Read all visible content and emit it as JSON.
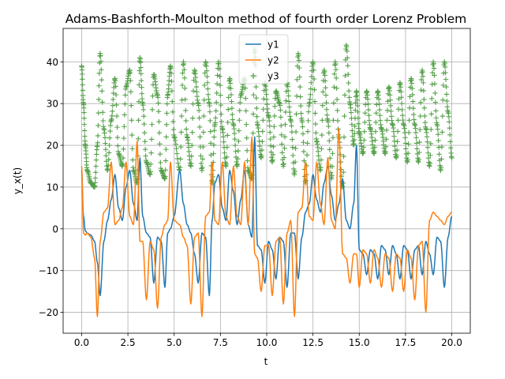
{
  "chart_data": {
    "type": "line",
    "title": "Adams-Bashforth-Moulton method of fourth order Lorenz Problem",
    "xlabel": "t",
    "ylabel": "y_x(t)",
    "xlim": [
      -1.0,
      21.0
    ],
    "ylim": [
      -25,
      48
    ],
    "x_ticks": [
      0.0,
      2.5,
      5.0,
      7.5,
      10.0,
      12.5,
      15.0,
      17.5,
      20.0
    ],
    "x_tick_labels": [
      "0.0",
      "2.5",
      "5.0",
      "7.5",
      "10.0",
      "12.5",
      "15.0",
      "17.5",
      "20.0"
    ],
    "y_ticks": [
      -20,
      -10,
      0,
      10,
      20,
      30,
      40
    ],
    "y_tick_labels": [
      "−20",
      "−10",
      "0",
      "10",
      "20",
      "30",
      "40"
    ],
    "grid": true,
    "legend_position": "top-center",
    "t_range": [
      0,
      20
    ],
    "series": [
      {
        "name": "y1",
        "color": "#1f77b4",
        "marker": "line",
        "x": [
          0.0,
          0.1,
          0.2,
          0.3,
          0.5,
          0.7,
          0.85,
          1.0,
          1.2,
          1.4,
          1.6,
          1.8,
          2.0,
          2.2,
          2.4,
          2.6,
          2.8,
          3.0,
          3.15,
          3.3,
          3.5,
          3.7,
          3.9,
          4.1,
          4.3,
          4.5,
          4.65,
          4.8,
          5.0,
          5.3,
          5.5,
          5.7,
          5.9,
          6.1,
          6.3,
          6.5,
          6.7,
          6.9,
          7.05,
          7.2,
          7.4,
          7.6,
          7.8,
          8.0,
          8.2,
          8.4,
          8.6,
          8.8,
          9.0,
          9.2,
          9.35,
          9.5,
          9.7,
          9.9,
          10.1,
          10.3,
          10.5,
          10.7,
          10.9,
          11.1,
          11.3,
          11.5,
          11.7,
          11.9,
          12.1,
          12.3,
          12.5,
          12.7,
          12.9,
          13.1,
          13.3,
          13.5,
          13.7,
          13.9,
          14.1,
          14.3,
          14.5,
          14.7,
          14.85,
          15.0,
          15.2,
          15.4,
          15.6,
          15.8,
          16.0,
          16.2,
          16.4,
          16.6,
          16.8,
          17.0,
          17.2,
          17.4,
          17.6,
          17.8,
          18.0,
          18.2,
          18.4,
          18.6,
          18.8,
          19.0,
          19.2,
          19.4,
          19.6,
          19.8,
          20.0
        ],
        "y": [
          14,
          3,
          -0.5,
          -1,
          -1.5,
          -3,
          -8,
          -16,
          -3,
          2,
          7,
          13,
          5,
          2,
          10,
          14,
          6,
          2,
          17,
          3,
          -1,
          -2,
          -13,
          -2,
          -3,
          -14,
          -1,
          0,
          3,
          14,
          6,
          1,
          -1,
          -6,
          -13,
          -1,
          -2,
          -16,
          2,
          11,
          13,
          5,
          2,
          14,
          9,
          1,
          7,
          14,
          1,
          -2,
          22,
          -4,
          -5,
          -13,
          -3,
          -5,
          -12,
          -2,
          -3,
          -14,
          -1,
          -1,
          -12,
          -2,
          4,
          6,
          13,
          7,
          4,
          11,
          15,
          8,
          2,
          6,
          12,
          2,
          0,
          6,
          20,
          -5,
          -6,
          -11,
          -5,
          -6,
          -12,
          -4,
          -5,
          -11,
          -4,
          -6,
          -12,
          -4,
          -5,
          -12,
          -5,
          -4,
          -11,
          -3,
          -6,
          -11,
          -2,
          -3,
          -14,
          -2,
          3
        ],
        "label_note": ""
      },
      {
        "name": "y2",
        "color": "#ff7f0e",
        "marker": "line",
        "x": [
          0.0,
          0.1,
          0.2,
          0.3,
          0.5,
          0.7,
          0.85,
          1.0,
          1.2,
          1.4,
          1.6,
          1.8,
          2.0,
          2.2,
          2.4,
          2.6,
          2.8,
          3.0,
          3.15,
          3.3,
          3.5,
          3.7,
          3.9,
          4.1,
          4.3,
          4.5,
          4.65,
          4.8,
          5.0,
          5.3,
          5.5,
          5.7,
          5.9,
          6.1,
          6.3,
          6.5,
          6.7,
          6.9,
          7.05,
          7.2,
          7.4,
          7.6,
          7.8,
          8.0,
          8.2,
          8.4,
          8.6,
          8.8,
          9.0,
          9.2,
          9.35,
          9.5,
          9.7,
          9.9,
          10.1,
          10.3,
          10.5,
          10.7,
          10.9,
          11.1,
          11.3,
          11.5,
          11.7,
          11.9,
          12.1,
          12.3,
          12.5,
          12.7,
          12.9,
          13.1,
          13.3,
          13.5,
          13.7,
          13.9,
          14.1,
          14.3,
          14.5,
          14.7,
          14.85,
          15.0,
          15.2,
          15.4,
          15.6,
          15.8,
          16.0,
          16.2,
          16.4,
          16.6,
          16.8,
          17.0,
          17.2,
          17.4,
          17.6,
          17.8,
          18.0,
          18.2,
          18.4,
          18.6,
          18.8,
          19.0,
          19.2,
          19.4,
          19.6,
          19.8,
          20.0
        ],
        "y": [
          15,
          -1,
          -1.5,
          -1,
          -2,
          -7,
          -21,
          -3,
          4,
          5,
          16,
          1,
          2,
          5,
          16,
          3,
          1,
          21,
          -3,
          -3,
          -17,
          -3,
          -5,
          -19,
          -2,
          1,
          2,
          16,
          2,
          1,
          -2,
          -4,
          -18,
          -2,
          -1,
          -21,
          3,
          4,
          16,
          2,
          1,
          16,
          3,
          1,
          15,
          3,
          1,
          16,
          1,
          22,
          -6,
          -7,
          -15,
          -4,
          -4,
          -16,
          -3,
          -2,
          -18,
          -1,
          2,
          -21,
          4,
          5,
          16,
          3,
          2,
          16,
          6,
          1,
          17,
          2,
          0,
          24,
          -6,
          -7,
          -13,
          -6,
          -6,
          -14,
          -5,
          -6,
          -13,
          -5,
          -7,
          -14,
          -6,
          -7,
          -15,
          -6,
          -7,
          -15,
          -5,
          -7,
          -17,
          -4,
          -3,
          -20,
          2,
          4,
          3,
          2,
          1,
          3,
          4
        ],
        "label_note": ""
      },
      {
        "name": "y3",
        "color": "#55a04a",
        "marker": "plus",
        "x": [
          0.0,
          0.1,
          0.2,
          0.3,
          0.5,
          0.7,
          0.85,
          1.0,
          1.2,
          1.4,
          1.6,
          1.8,
          2.0,
          2.2,
          2.4,
          2.6,
          2.8,
          3.0,
          3.15,
          3.3,
          3.5,
          3.7,
          3.9,
          4.1,
          4.3,
          4.5,
          4.65,
          4.8,
          5.0,
          5.3,
          5.5,
          5.7,
          5.9,
          6.1,
          6.3,
          6.5,
          6.7,
          6.9,
          7.05,
          7.2,
          7.4,
          7.6,
          7.8,
          8.0,
          8.2,
          8.4,
          8.6,
          8.8,
          9.0,
          9.2,
          9.35,
          9.5,
          9.7,
          9.9,
          10.1,
          10.3,
          10.5,
          10.7,
          10.9,
          11.1,
          11.3,
          11.5,
          11.7,
          11.9,
          12.1,
          12.3,
          12.5,
          12.7,
          12.9,
          13.1,
          13.3,
          13.5,
          13.7,
          13.9,
          14.1,
          14.3,
          14.5,
          14.7,
          14.85,
          15.0,
          15.2,
          15.4,
          15.6,
          15.8,
          16.0,
          16.2,
          16.4,
          16.6,
          16.8,
          17.0,
          17.2,
          17.4,
          17.6,
          17.8,
          18.0,
          18.2,
          18.4,
          18.6,
          18.8,
          19.0,
          19.2,
          19.4,
          19.6,
          19.8,
          20.0
        ],
        "y": [
          39,
          30,
          20,
          14,
          11,
          10,
          20,
          42,
          24,
          14,
          26,
          36,
          18,
          15,
          34,
          38,
          14,
          11,
          41,
          30,
          16,
          13,
          37,
          32,
          14,
          12,
          32,
          39,
          22,
          14,
          40,
          22,
          15,
          38,
          30,
          14,
          40,
          30,
          11,
          25,
          40,
          24,
          15,
          36,
          25,
          15,
          32,
          36,
          14,
          12,
          43,
          25,
          17,
          35,
          27,
          16,
          33,
          30,
          15,
          35,
          26,
          13,
          42,
          26,
          11,
          30,
          40,
          21,
          14,
          38,
          26,
          12,
          40,
          22,
          10,
          44,
          30,
          20,
          33,
          23,
          18,
          33,
          24,
          18,
          33,
          24,
          18,
          34,
          25,
          17,
          35,
          25,
          16,
          36,
          25,
          16,
          38,
          24,
          15,
          40,
          25,
          14,
          40,
          28,
          17
        ],
        "label_note": ""
      }
    ]
  }
}
